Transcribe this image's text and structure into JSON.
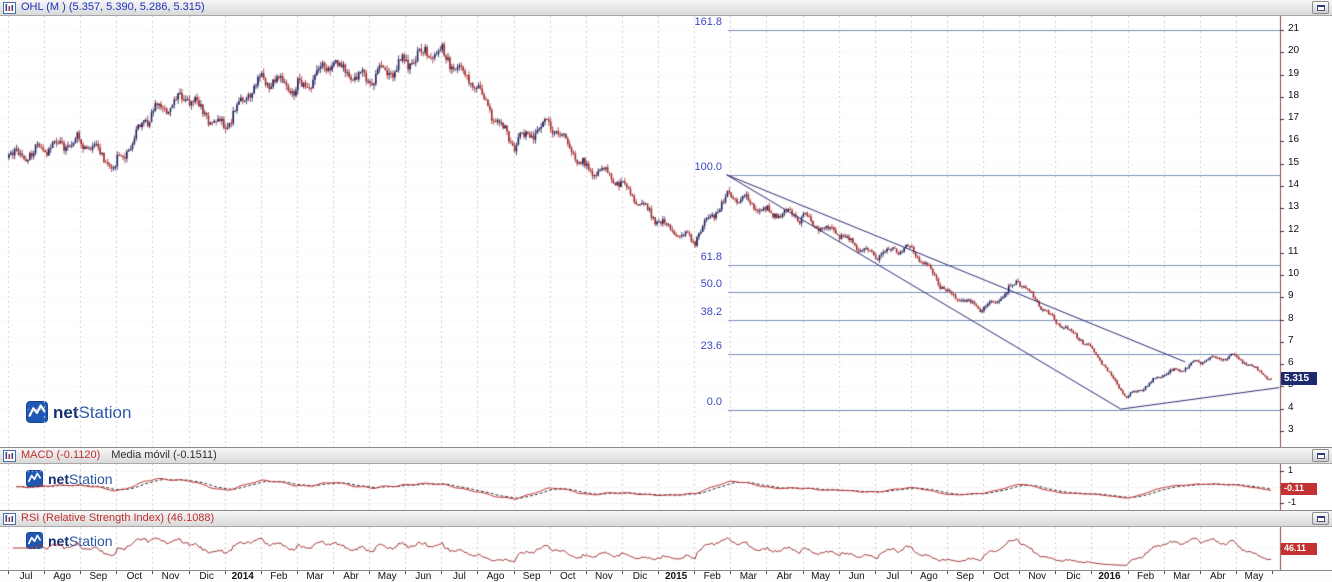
{
  "branding": {
    "bold": "net",
    "rest": "Station"
  },
  "panels": {
    "price": {
      "title": "OHL (M ) (5.357, 5.390, 5.286, 5.315)",
      "badge": "5.315"
    },
    "macd": {
      "title": "MACD (-0.1120)",
      "subtitle": "Media móvil (-0.1511)",
      "badge": "-0.11"
    },
    "rsi": {
      "title": "RSI (Relative Strength Index) (46.1088)",
      "badge": "46.11"
    }
  },
  "chart_data": {
    "type": "candlestick",
    "title": "OHL (M)",
    "last_ohlc": {
      "open": 5.357,
      "high": 5.39,
      "low": 5.286,
      "close": 5.315
    },
    "price_axis": {
      "min": 3,
      "max": 21,
      "step": 1
    },
    "months": [
      "Jul",
      "Ago",
      "Sep",
      "Oct",
      "Nov",
      "Dic",
      "2014",
      "Feb",
      "Mar",
      "Abr",
      "May",
      "Jun",
      "Jul",
      "Ago",
      "Sep",
      "Oct",
      "Nov",
      "Dic",
      "2015",
      "Feb",
      "Mar",
      "Abr",
      "May",
      "Jun",
      "Jul",
      "Ago",
      "Sep",
      "Oct",
      "Nov",
      "Dic",
      "2016",
      "Feb",
      "Mar",
      "Abr",
      "May"
    ],
    "monthly_close_path": [
      15.6,
      16.1,
      14.9,
      17.3,
      17.9,
      16.6,
      18.9,
      18.3,
      19.4,
      18.7,
      19.6,
      20.1,
      18.4,
      15.8,
      16.9,
      14.9,
      14.2,
      12.4,
      11.5,
      13.7,
      12.9,
      12.6,
      11.8,
      10.9,
      11.3,
      9.3,
      8.4,
      9.7,
      8.0,
      6.8,
      4.5,
      5.5,
      6.1,
      6.4,
      5.315
    ],
    "fibonacci_levels": [
      {
        "label": "161.8",
        "price": 21.0
      },
      {
        "label": "100.0",
        "price": 14.5
      },
      {
        "label": "61.8",
        "price": 10.47
      },
      {
        "label": "50.0",
        "price": 9.22
      },
      {
        "label": "38.2",
        "price": 7.98
      },
      {
        "label": "23.6",
        "price": 6.44
      },
      {
        "label": "0.0",
        "price": 3.95
      }
    ],
    "trendlines": [
      {
        "m1": 19.9,
        "p1": 14.5,
        "m2": 32.6,
        "p2": 6.1
      },
      {
        "m1": 19.9,
        "p1": 14.5,
        "m2": 30.8,
        "p2": 4.0
      },
      {
        "m1": 30.8,
        "p1": 3.98,
        "m2": 35.2,
        "p2": 4.95
      }
    ],
    "indicators": {
      "macd": {
        "line": -0.112,
        "signal": -0.1511,
        "axis_ticks": [
          1,
          0,
          -1
        ]
      },
      "rsi": {
        "value": 46.1088,
        "midline": 50,
        "axis_ticks": [
          50
        ]
      }
    },
    "colors": {
      "up": "#23235c",
      "down": "#a42c2c",
      "macd_line": "#c03030",
      "signal_line": "#2a2a2a",
      "rsi_line": "#a03434",
      "fib_line": "#7f90ba",
      "fib_label": "#3a49c0",
      "trendline": "#2b2b72",
      "badge_price_bg": "#1c2b6e",
      "badge_indicator_bg": "#c23232"
    }
  }
}
